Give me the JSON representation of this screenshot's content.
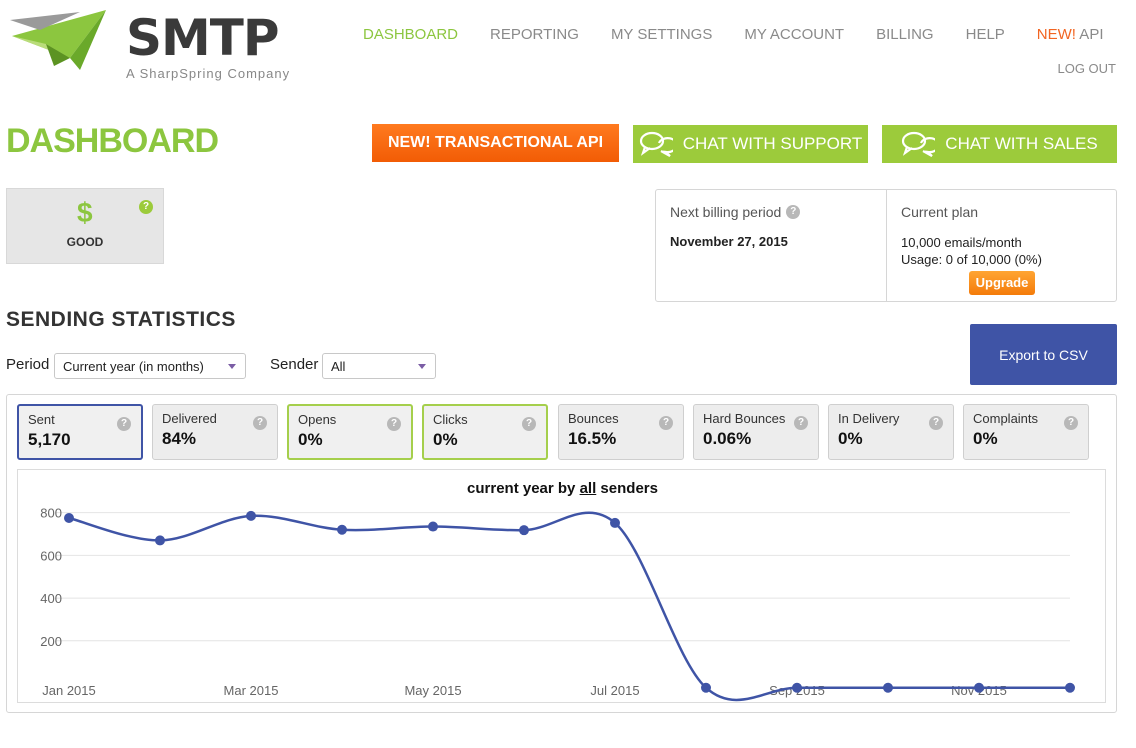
{
  "header": {
    "logo_text": "SMTP",
    "logo_subtitle": "A SharpSpring Company",
    "nav": [
      {
        "label": "DASHBOARD",
        "active": true
      },
      {
        "label": "REPORTING",
        "active": false
      },
      {
        "label": "MY SETTINGS",
        "active": false
      },
      {
        "label": "MY ACCOUNT",
        "active": false
      },
      {
        "label": "BILLING",
        "active": false
      },
      {
        "label": "HELP",
        "active": false
      }
    ],
    "nav_api_new": "NEW!",
    "nav_api_label": " API",
    "logout": "LOG OUT"
  },
  "page_title": "DASHBOARD",
  "actions": {
    "transactional_api": "NEW! TRANSACTIONAL API",
    "chat_support": "CHAT WITH SUPPORT",
    "chat_sales": "CHAT WITH SALES"
  },
  "status": {
    "symbol": "$",
    "label": "GOOD"
  },
  "billing": {
    "next_label": "Next billing period",
    "next_date": "November 27, 2015",
    "plan_label": "Current plan",
    "plan_emails": "10,000 emails/month",
    "plan_usage": "Usage: 0 of 10,000 (0%)",
    "upgrade": "Upgrade"
  },
  "stats": {
    "title": "SENDING STATISTICS",
    "period_label": "Period",
    "period_value": "Current year (in months)",
    "sender_label": "Sender",
    "sender_value": "All",
    "export": "Export to CSV",
    "tiles": [
      {
        "label": "Sent",
        "value": "5,170"
      },
      {
        "label": "Delivered",
        "value": "84%"
      },
      {
        "label": "Opens",
        "value": "0%"
      },
      {
        "label": "Clicks",
        "value": "0%"
      },
      {
        "label": "Bounces",
        "value": "16.5%"
      },
      {
        "label": "Hard Bounces",
        "value": "0.06%"
      },
      {
        "label": "In Delivery",
        "value": "0%"
      },
      {
        "label": "Complaints",
        "value": "0%"
      }
    ]
  },
  "chart_data": {
    "type": "line",
    "title_pre": "current year by ",
    "title_link": "all",
    "title_post": " senders",
    "x": [
      "Jan 2015",
      "Feb 2015",
      "Mar 2015",
      "Apr 2015",
      "May 2015",
      "Jun 2015",
      "Jul 2015",
      "Aug 2015",
      "Sep 2015",
      "Oct 2015",
      "Nov 2015",
      "Dec 2015"
    ],
    "x_tick_labels": [
      "Jan 2015",
      "Mar 2015",
      "May 2015",
      "Jul 2015",
      "Sep 2015",
      "Nov 2015"
    ],
    "series": [
      {
        "values": [
          775,
          670,
          785,
          720,
          735,
          718,
          752,
          -20,
          -20,
          -20,
          -20,
          -20
        ]
      }
    ],
    "y_ticks": [
      200,
      400,
      600,
      800
    ],
    "ylim": [
      -40,
      850
    ],
    "grid": true,
    "color": "#3f54a6"
  }
}
